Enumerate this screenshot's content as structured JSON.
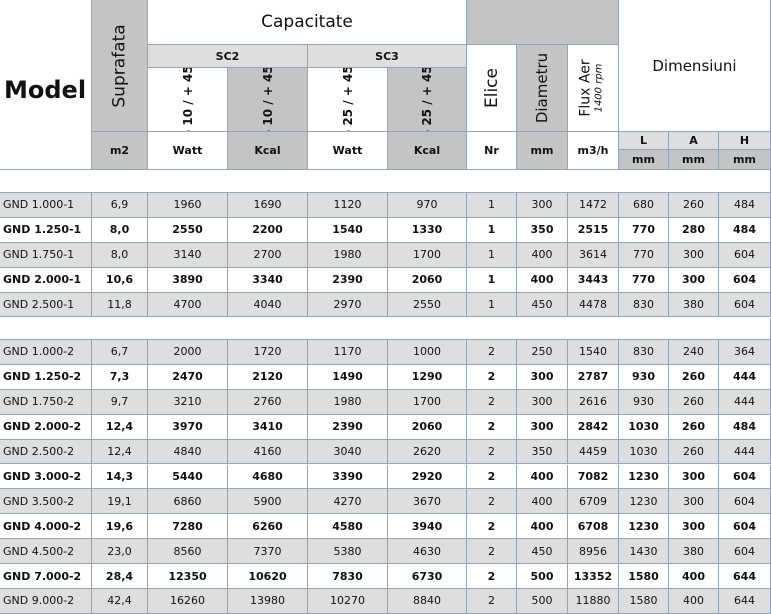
{
  "header": {
    "model": "Model",
    "suprafata": "Suprafata",
    "capacitate": "Capacitate",
    "sc2": "SC2",
    "sc3": "SC3",
    "sc2_watt_range": "- 10 / + 45",
    "sc2_kcal_range": "- 10 / + 45",
    "sc3_watt_range": "- 25 / + 45",
    "sc3_kcal_range": "- 25 / + 45",
    "elice": "Elice",
    "diametru": "Diametru",
    "flux": "Flux Aer",
    "flux_rpm": "1400 rpm",
    "dimensiuni": "Dimensiuni",
    "dims": [
      "L",
      "A",
      "H"
    ]
  },
  "units": [
    "m2",
    "Watt",
    "Kcal",
    "Watt",
    "Kcal",
    "Nr",
    "mm",
    "m3/h",
    "mm",
    "mm",
    "mm"
  ],
  "groups": [
    {
      "rows": [
        {
          "bold": false,
          "cells": [
            "GND 1.000-1",
            "6,9",
            "1960",
            "1690",
            "1120",
            "970",
            "1",
            "300",
            "1472",
            "680",
            "260",
            "484"
          ]
        },
        {
          "bold": true,
          "cells": [
            "GND 1.250-1",
            "8,0",
            "2550",
            "2200",
            "1540",
            "1330",
            "1",
            "350",
            "2515",
            "770",
            "280",
            "484"
          ]
        },
        {
          "bold": false,
          "cells": [
            "GND 1.750-1",
            "8,0",
            "3140",
            "2700",
            "1980",
            "1700",
            "1",
            "400",
            "3614",
            "770",
            "300",
            "604"
          ]
        },
        {
          "bold": true,
          "cells": [
            "GND 2.000-1",
            "10,6",
            "3890",
            "3340",
            "2390",
            "2060",
            "1",
            "400",
            "3443",
            "770",
            "300",
            "604"
          ]
        },
        {
          "bold": false,
          "cells": [
            "GND 2.500-1",
            "11,8",
            "4700",
            "4040",
            "2970",
            "2550",
            "1",
            "450",
            "4478",
            "830",
            "380",
            "604"
          ]
        }
      ]
    },
    {
      "rows": [
        {
          "bold": false,
          "cells": [
            "GND 1.000-2",
            "6,7",
            "2000",
            "1720",
            "1170",
            "1000",
            "2",
            "250",
            "1540",
            "830",
            "240",
            "364"
          ]
        },
        {
          "bold": true,
          "cells": [
            "GND 1.250-2",
            "7,3",
            "2470",
            "2120",
            "1490",
            "1290",
            "2",
            "300",
            "2787",
            "930",
            "260",
            "444"
          ]
        },
        {
          "bold": false,
          "cells": [
            "GND 1.750-2",
            "9,7",
            "3210",
            "2760",
            "1980",
            "1700",
            "2",
            "300",
            "2616",
            "930",
            "260",
            "444"
          ]
        },
        {
          "bold": true,
          "cells": [
            "GND 2.000-2",
            "12,4",
            "3970",
            "3410",
            "2390",
            "2060",
            "2",
            "300",
            "2842",
            "1030",
            "260",
            "484"
          ]
        },
        {
          "bold": false,
          "cells": [
            "GND 2.500-2",
            "12,4",
            "4840",
            "4160",
            "3040",
            "2620",
            "2",
            "350",
            "4459",
            "1030",
            "260",
            "444"
          ]
        },
        {
          "bold": true,
          "cells": [
            "GND 3.000-2",
            "14,3",
            "5440",
            "4680",
            "3390",
            "2920",
            "2",
            "400",
            "7082",
            "1230",
            "300",
            "604"
          ]
        },
        {
          "bold": false,
          "cells": [
            "GND 3.500-2",
            "19,1",
            "6860",
            "5900",
            "4270",
            "3670",
            "2",
            "400",
            "6709",
            "1230",
            "300",
            "604"
          ]
        },
        {
          "bold": true,
          "cells": [
            "GND 4.000-2",
            "19,6",
            "7280",
            "6260",
            "4580",
            "3940",
            "2",
            "400",
            "6708",
            "1230",
            "300",
            "604"
          ]
        },
        {
          "bold": false,
          "cells": [
            "GND 4.500-2",
            "23,0",
            "8560",
            "7370",
            "5380",
            "4630",
            "2",
            "450",
            "8956",
            "1430",
            "380",
            "604"
          ]
        },
        {
          "bold": true,
          "cells": [
            "GND 7.000-2",
            "28,4",
            "12350",
            "10620",
            "7830",
            "6730",
            "2",
            "500",
            "13352",
            "1580",
            "400",
            "644"
          ]
        },
        {
          "bold": false,
          "cells": [
            "GND 9.000-2",
            "42,4",
            "16260",
            "13980",
            "10270",
            "8840",
            "2",
            "500",
            "11880",
            "1580",
            "400",
            "644"
          ]
        }
      ]
    }
  ]
}
